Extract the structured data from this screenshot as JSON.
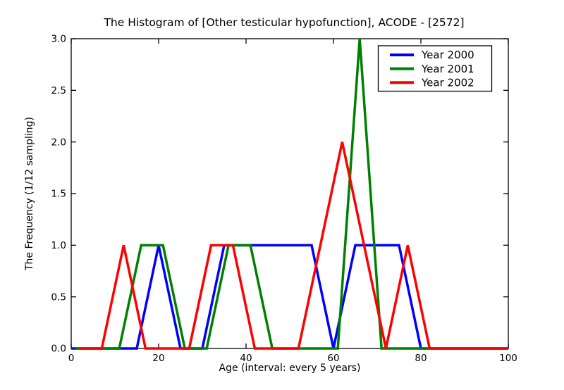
{
  "chart_data": {
    "type": "line",
    "title": "The Histogram of [Other testicular hypofunction], ACODE - [2572]",
    "xlabel": "Age (interval: every 5 years)",
    "ylabel": "The Frequency (1/12 sampling)",
    "x": [
      0,
      5,
      10,
      15,
      20,
      25,
      30,
      35,
      40,
      45,
      50,
      55,
      60,
      65,
      70,
      75,
      80,
      85,
      90,
      95,
      100
    ],
    "xlim": [
      0,
      100
    ],
    "ylim": [
      0.0,
      3.0
    ],
    "xticks": [
      0,
      20,
      40,
      60,
      80,
      100
    ],
    "xtick_labels": [
      "0",
      "20",
      "40",
      "60",
      "80",
      "100"
    ],
    "yticks": [
      0.0,
      0.5,
      1.0,
      1.5,
      2.0,
      2.5,
      3.0
    ],
    "ytick_labels": [
      "0.0",
      "0.5",
      "1.0",
      "1.5",
      "2.0",
      "2.5",
      "3.0"
    ],
    "grid": false,
    "background": "#ffffff",
    "axis_color": "#000000",
    "line_width": 3.5,
    "legend": {
      "position": "upper right",
      "entries": [
        "Year 2000",
        "Year 2001",
        "Year 2002"
      ]
    },
    "series": [
      {
        "name": "Year 2000",
        "color": "#0000ff",
        "x_draw_offset": 0,
        "values": [
          0,
          0,
          0,
          0,
          1,
          0,
          0,
          1,
          1,
          1,
          1,
          1,
          0,
          1,
          1,
          1,
          0,
          0,
          0,
          0,
          0
        ]
      },
      {
        "name": "Year 2001",
        "color": "#008000",
        "x_draw_offset": 1,
        "values": [
          0,
          0,
          0,
          1,
          1,
          0,
          0,
          1,
          1,
          0,
          0,
          0,
          0,
          3,
          0,
          0,
          0,
          0,
          0,
          0,
          0
        ]
      },
      {
        "name": "Year 2002",
        "color": "#ff0000",
        "x_draw_offset": 2,
        "values": [
          0,
          0,
          1,
          0,
          0,
          0,
          1,
          1,
          0,
          0,
          0,
          1,
          2,
          1,
          0,
          1,
          0,
          0,
          0,
          0,
          0
        ]
      }
    ]
  }
}
